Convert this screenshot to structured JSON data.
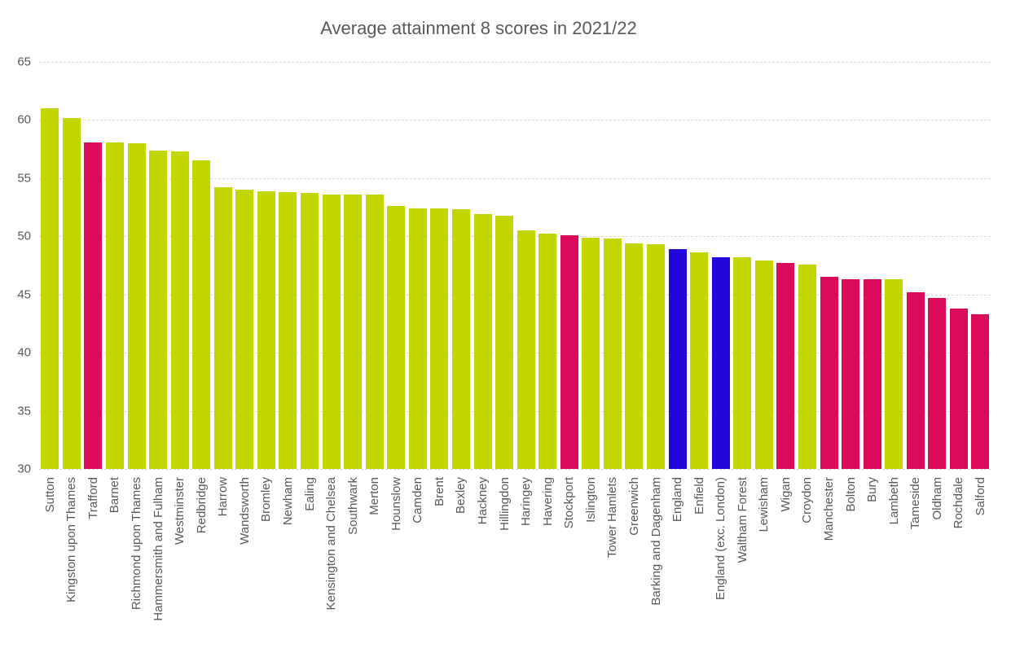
{
  "palette": {
    "london": "#C4D600",
    "greater_manchester": "#DB0A5B",
    "england": "#2306DB",
    "grid": "#D9D9D9",
    "text": "#595959"
  },
  "chart_data": {
    "type": "bar",
    "title": "Average attainment 8 scores in 2021/22",
    "xlabel": "",
    "ylabel": "",
    "ylim": [
      30,
      65
    ],
    "yticks": [
      65,
      60,
      55,
      50,
      45,
      40,
      35,
      30
    ],
    "grid": true,
    "legend": "none",
    "bar_baseline": 30,
    "categories": [
      "Sutton",
      "Kingston upon Thames",
      "Trafford",
      "Barnet",
      "Richmond upon Thames",
      "Hammersmith and Fulham",
      "Westminster",
      "Redbridge",
      "Harrow",
      "Wandsworth",
      "Bromley",
      "Newham",
      "Ealing",
      "Kensington and Chelsea",
      "Southwark",
      "Merton",
      "Hounslow",
      "Camden",
      "Brent",
      "Bexley",
      "Hackney",
      "Hillingdon",
      "Haringey",
      "Havering",
      "Stockport",
      "Islington",
      "Tower Hamlets",
      "Greenwich",
      "Barking and Dagenham",
      "England",
      "Enfield",
      "England (exc. London)",
      "Waltham Forest",
      "Lewisham",
      "Wigan",
      "Croydon",
      "Manchester",
      "Bolton",
      "Bury",
      "Lambeth",
      "Tameside",
      "Oldham",
      "Rochdale",
      "Salford"
    ],
    "values": [
      61.0,
      60.2,
      58.1,
      58.1,
      58.0,
      57.4,
      57.3,
      56.5,
      54.2,
      54.0,
      53.9,
      53.8,
      53.7,
      53.6,
      53.6,
      53.6,
      52.6,
      52.4,
      52.4,
      52.3,
      51.9,
      51.8,
      50.5,
      50.2,
      50.1,
      49.9,
      49.8,
      49.4,
      49.3,
      48.9,
      48.6,
      48.2,
      48.2,
      47.9,
      47.7,
      47.6,
      46.5,
      46.3,
      46.3,
      46.3,
      45.2,
      44.7,
      43.8,
      43.3
    ],
    "color_groups": [
      "london",
      "london",
      "greater_manchester",
      "london",
      "london",
      "london",
      "london",
      "london",
      "london",
      "london",
      "london",
      "london",
      "london",
      "london",
      "london",
      "london",
      "london",
      "london",
      "london",
      "london",
      "london",
      "london",
      "london",
      "london",
      "greater_manchester",
      "london",
      "london",
      "london",
      "london",
      "england",
      "london",
      "england",
      "london",
      "london",
      "greater_manchester",
      "london",
      "greater_manchester",
      "greater_manchester",
      "greater_manchester",
      "london",
      "greater_manchester",
      "greater_manchester",
      "greater_manchester",
      "greater_manchester"
    ]
  }
}
